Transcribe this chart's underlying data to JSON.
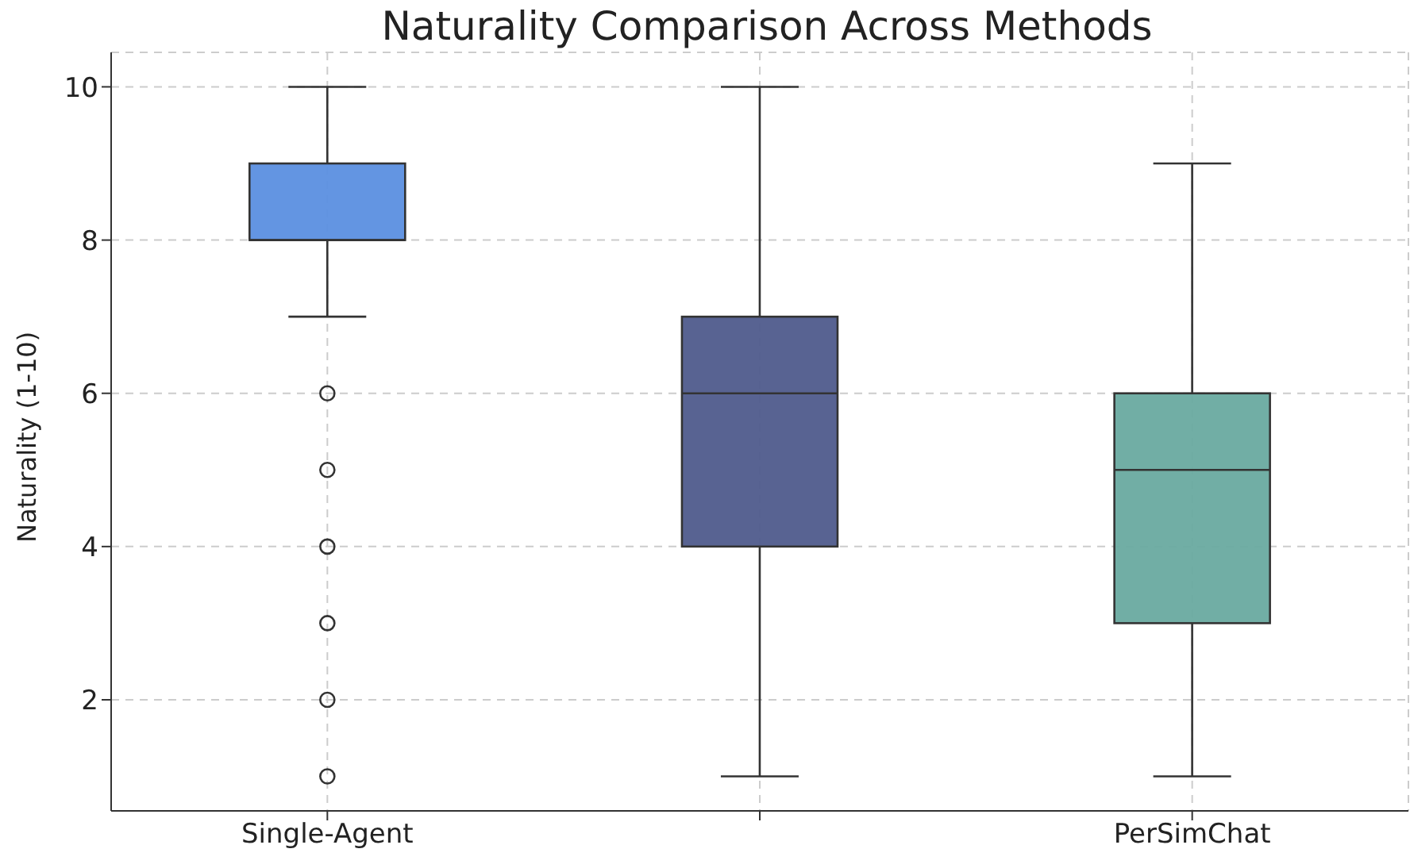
{
  "chart_data": {
    "type": "box",
    "title": "Naturality Comparison Across Methods",
    "ylabel": "Naturality (1-10)",
    "categories": [
      "Single-Agent",
      null,
      "PerSimChat"
    ],
    "colors": [
      "#5b8fe0",
      "#4f5b8c",
      "#69aaa0"
    ],
    "boxes": [
      {
        "low": 7,
        "q1": 8,
        "median": 8,
        "q3": 9,
        "high": 10,
        "outliers": [
          6,
          5,
          4,
          3,
          2,
          1
        ]
      },
      {
        "low": 1,
        "q1": 4,
        "median": 6,
        "q3": 7,
        "high": 10
      },
      {
        "low": 1,
        "q1": 3,
        "median": 5,
        "q3": 6,
        "high": 9
      }
    ],
    "ylim": [
      0.55,
      10.45
    ],
    "yticks": [
      2,
      4,
      6,
      8,
      10
    ],
    "grid": true
  }
}
